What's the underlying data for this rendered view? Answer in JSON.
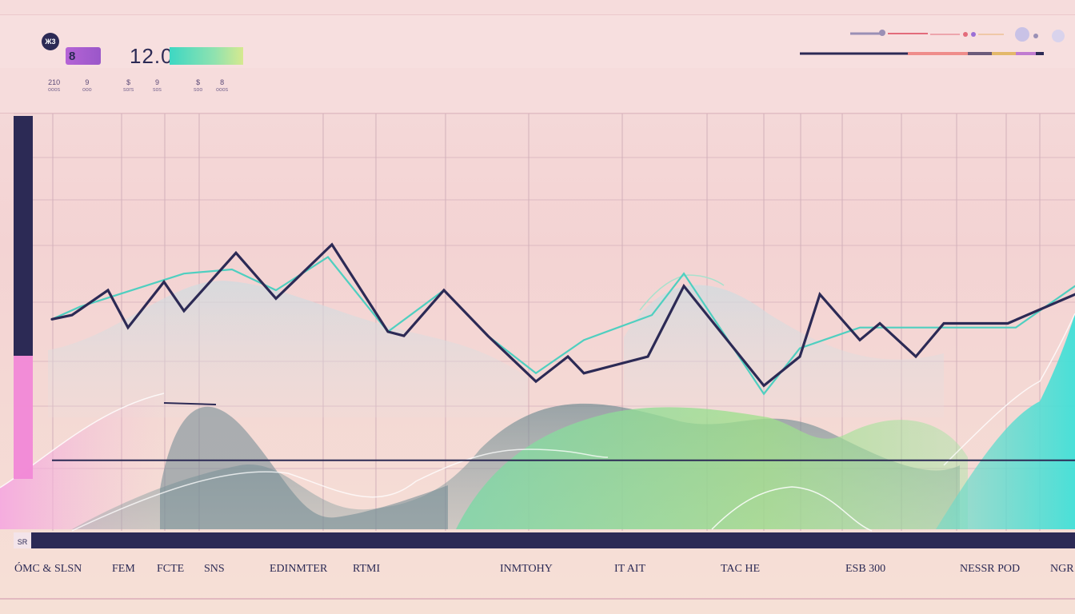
{
  "header": {
    "badge": "Ж3",
    "pill_text": "8",
    "value": "12.0",
    "colors": {
      "navy": "#2c2a55",
      "purple": "#b564d6",
      "teal": "#3dd7c3",
      "green": "#9be39a",
      "pink": "#f28ad6"
    }
  },
  "stats": [
    {
      "value": "210",
      "label": "ooos"
    },
    {
      "value": "9",
      "label": "ooo"
    },
    {
      "value": "$",
      "label": "sors"
    },
    {
      "value": "9",
      "label": "sos"
    },
    {
      "value": "$",
      "label": "soo"
    },
    {
      "value": "8",
      "label": "ooos"
    }
  ],
  "axis_corner": "SR",
  "chart_data": {
    "type": "line",
    "title": "",
    "xlabel": "",
    "ylabel": "",
    "categories": [
      "ÓMC &",
      "SLSN",
      "FEM",
      "FCTE",
      "SNS",
      "EDINMTER",
      "RTMI",
      "INMTOHY",
      "IT AIT",
      "TAC HE",
      "ESB 300",
      "NESSR POD",
      "NGR"
    ],
    "ylim": [
      0,
      100
    ],
    "grid": true,
    "series": [
      {
        "x": [
          65,
          90,
          135,
          160,
          205,
          230,
          295,
          345,
          415,
          485,
          505,
          555,
          610,
          670,
          710,
          730,
          810,
          855,
          955,
          1000,
          1025,
          1075,
          1100,
          1145,
          1180,
          1215,
          1260,
          1344
        ],
        "y": [
          51,
          52,
          58,
          49,
          60,
          53,
          67,
          56,
          69,
          48,
          47,
          58,
          47,
          36,
          42,
          38,
          42,
          59,
          35,
          42,
          57,
          46,
          50,
          42,
          50,
          50,
          50,
          57
        ]
      },
      {
        "x": [
          65,
          100,
          230,
          290,
          345,
          410,
          485,
          555,
          610,
          670,
          730,
          815,
          855,
          955,
          1000,
          1075,
          1180,
          1270,
          1344
        ],
        "y": [
          51,
          54,
          62,
          63,
          58,
          66,
          48,
          58,
          47,
          38,
          46,
          52,
          62,
          33,
          44,
          49,
          49,
          49,
          59
        ]
      }
    ],
    "baseline": 17,
    "level_bar": {
      "value": 29,
      "max": 100
    }
  },
  "x_axis_labels": [
    "ÓMC &",
    "SLSN",
    "FEM",
    "FCTE",
    "SNS",
    "EDINMTER",
    "RTMI",
    "INMTOHY",
    "IT AIT",
    "TAC HE",
    "ESB 300",
    "NESSR POD",
    "NGR"
  ]
}
